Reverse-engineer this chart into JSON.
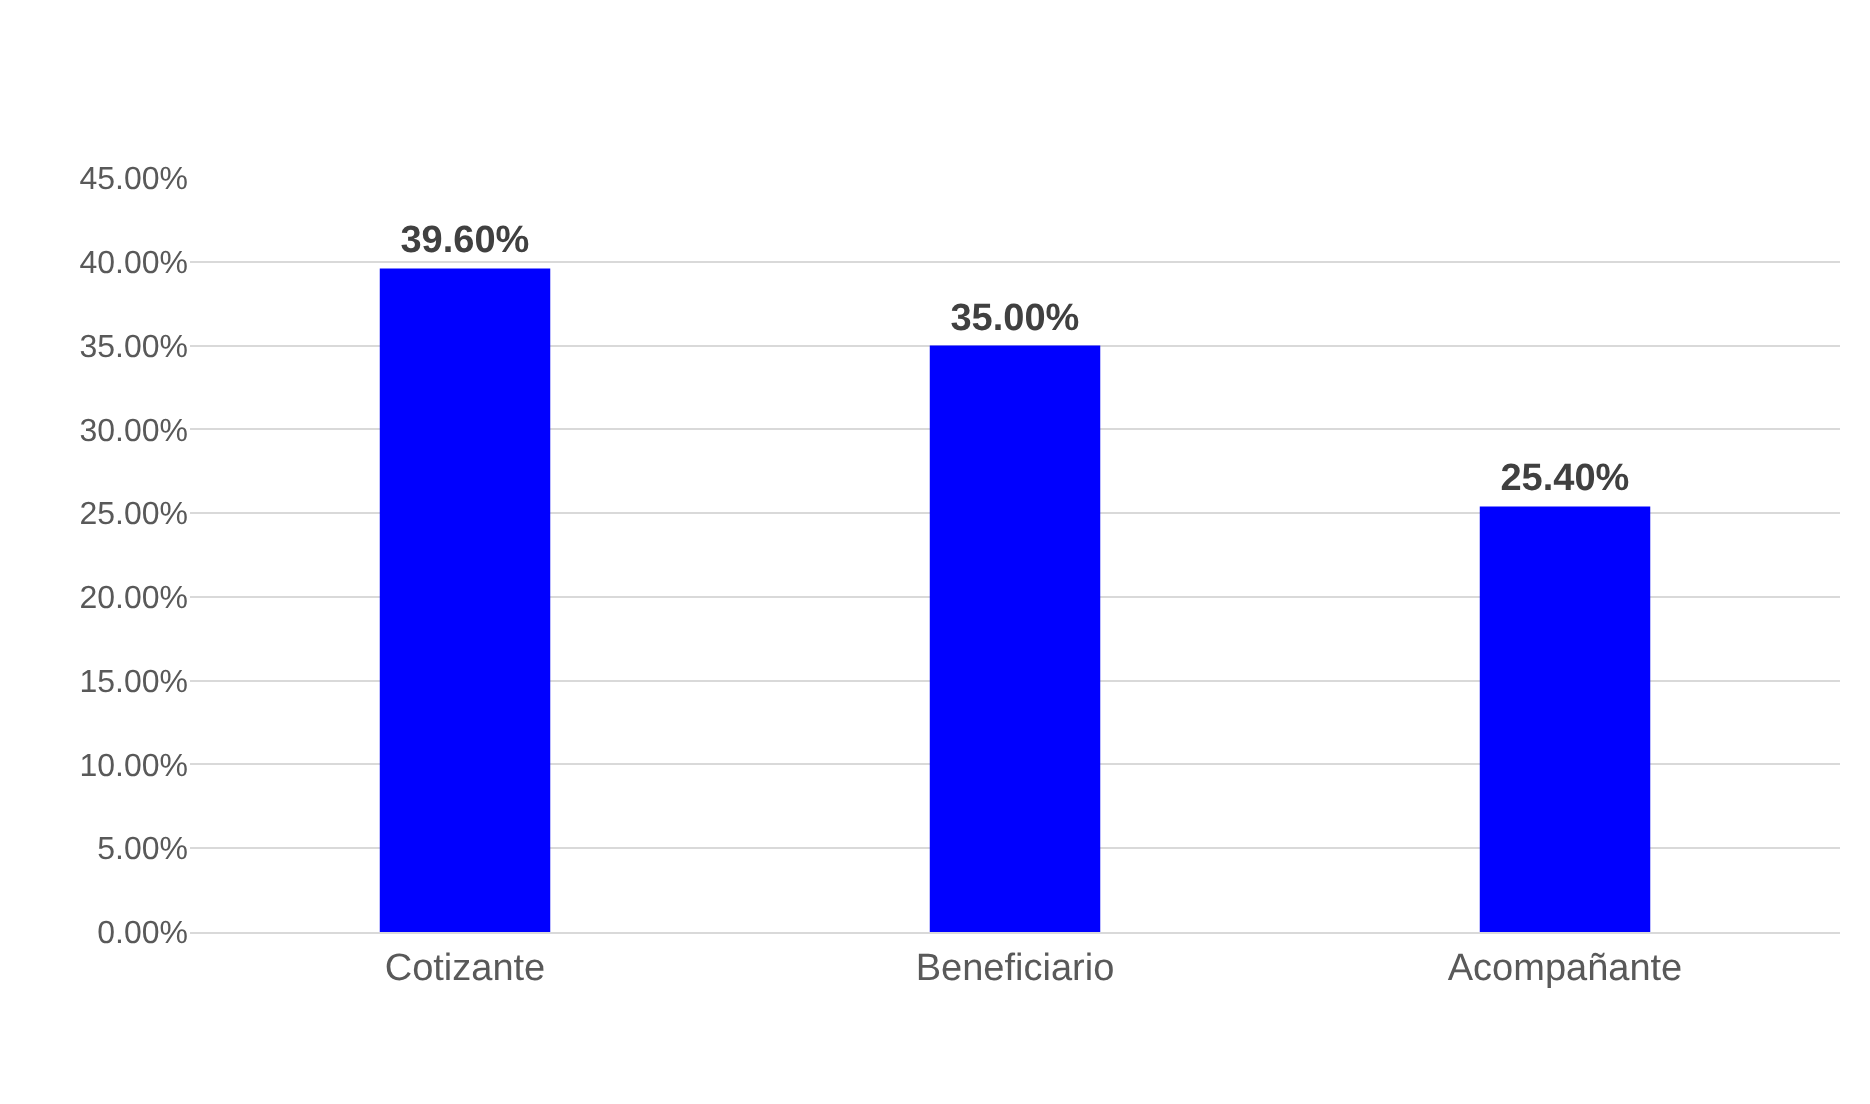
{
  "chart_data": {
    "type": "bar",
    "categories": [
      "Cotizante",
      "Beneficiario",
      "Acompañante"
    ],
    "values": [
      39.6,
      35.0,
      25.4
    ],
    "value_labels": [
      "39.60%",
      "35.00%",
      "25.40%"
    ],
    "color": "#0000ff",
    "ylim": [
      0,
      45
    ],
    "yticks": [
      {
        "value": 0,
        "label": "0.00%"
      },
      {
        "value": 5,
        "label": "5.00%"
      },
      {
        "value": 10,
        "label": "10.00%"
      },
      {
        "value": 15,
        "label": "15.00%"
      },
      {
        "value": 20,
        "label": "20.00%"
      },
      {
        "value": 25,
        "label": "25.00%"
      },
      {
        "value": 30,
        "label": "30.00%"
      },
      {
        "value": 35,
        "label": "35.00%"
      },
      {
        "value": 40,
        "label": "40.00%"
      },
      {
        "value": 45,
        "label": "45.00%"
      }
    ],
    "grid": "y"
  }
}
